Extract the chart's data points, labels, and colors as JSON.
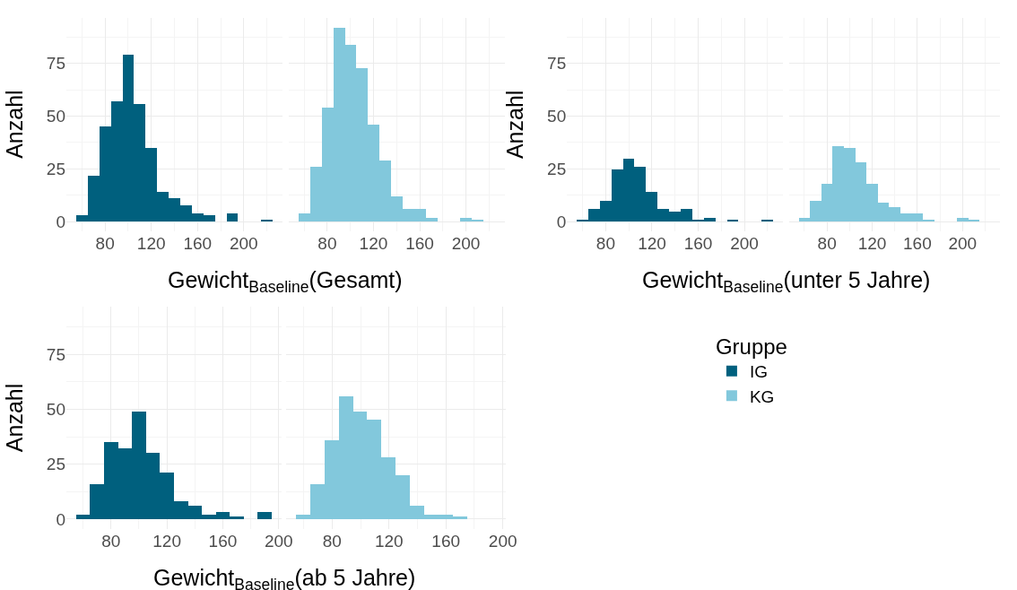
{
  "chart_data": [
    {
      "type": "histogram",
      "xlabel": "Gewicht$_{Baseline}$(Gesamt)",
      "ylabel": "Anzahl",
      "bins": [
        55,
        65,
        75,
        85,
        95,
        105,
        115,
        125,
        135,
        145,
        155,
        165,
        175,
        185,
        195,
        205,
        215,
        225
      ],
      "xlim": [
        46.5,
        233.5
      ],
      "ylim": [
        -4.6,
        96.6
      ],
      "xticks": [
        80,
        120,
        160,
        200
      ],
      "yticks": [
        0,
        25,
        50,
        75
      ],
      "grid": true,
      "color": "#00607e",
      "values": [
        3,
        22,
        45,
        57,
        79,
        56,
        35,
        14,
        11,
        8,
        4,
        3,
        0,
        4,
        0,
        0,
        1
      ]
    },
    {
      "type": "histogram",
      "bins": [
        55,
        65,
        75,
        85,
        95,
        105,
        115,
        125,
        135,
        145,
        155,
        165,
        175,
        185,
        195,
        205,
        215,
        225
      ],
      "xlim": [
        46.5,
        233.5
      ],
      "ylim": [
        -4.6,
        96.6
      ],
      "xticks": [
        80,
        120,
        160,
        200
      ],
      "yticks": [
        0,
        25,
        50,
        75
      ],
      "grid": true,
      "tick_labels": "x",
      "color": "#82c8dc",
      "values": [
        4,
        26,
        54,
        92,
        84,
        73,
        46,
        29,
        12,
        6,
        6,
        2,
        0,
        0,
        2,
        1,
        0
      ]
    },
    {
      "type": "histogram",
      "xlabel": "Gewicht$_{Baseline}$(unter 5 Jahre)",
      "ylabel": "Anzahl",
      "bins": [
        55,
        65,
        75,
        85,
        95,
        105,
        115,
        125,
        135,
        145,
        155,
        165,
        175,
        185,
        195,
        205,
        215,
        225
      ],
      "xlim": [
        46.5,
        233.5
      ],
      "ylim": [
        -4.6,
        96.6
      ],
      "xticks": [
        80,
        120,
        160,
        200
      ],
      "yticks": [
        0,
        25,
        50,
        75
      ],
      "grid": true,
      "color": "#00607e",
      "values": [
        1,
        6,
        10,
        25,
        30,
        26,
        14,
        6,
        5,
        6,
        1,
        2,
        0,
        1,
        0,
        0,
        1
      ]
    },
    {
      "type": "histogram",
      "bins": [
        55,
        65,
        75,
        85,
        95,
        105,
        115,
        125,
        135,
        145,
        155,
        165,
        175,
        185,
        195,
        205,
        215,
        225
      ],
      "xlim": [
        46.5,
        233.5
      ],
      "ylim": [
        -4.6,
        96.6
      ],
      "xticks": [
        80,
        120,
        160,
        200
      ],
      "yticks": [
        0,
        25,
        50,
        75
      ],
      "grid": true,
      "tick_labels": "x",
      "color": "#82c8dc",
      "values": [
        2,
        10,
        18,
        36,
        35,
        28,
        18,
        9,
        7,
        4,
        4,
        1,
        0,
        0,
        2,
        1,
        0
      ]
    },
    {
      "type": "histogram",
      "xlabel": "Gewicht$_{Baseline}$(ab 5 Jahre)",
      "ylabel": "Anzahl",
      "bins": [
        55,
        65,
        75,
        85,
        95,
        105,
        115,
        125,
        135,
        145,
        155,
        165,
        175,
        185,
        195
      ],
      "xlim": [
        48,
        202
      ],
      "ylim": [
        -4.6,
        96.6
      ],
      "xticks": [
        80,
        120,
        160,
        200
      ],
      "yticks": [
        0,
        25,
        50,
        75
      ],
      "grid": true,
      "legend": "right",
      "legend_title": "Gruppe",
      "series": [
        {
          "name": "IG",
          "color": "#00607e",
          "values": [
            2,
            16,
            35,
            32,
            49,
            30,
            21,
            8,
            6,
            2,
            3,
            1,
            0,
            3
          ]
        }
      ]
    },
    {
      "type": "histogram",
      "bins": [
        55,
        65,
        75,
        85,
        95,
        105,
        115,
        125,
        135,
        145,
        155,
        165,
        175,
        185,
        195
      ],
      "xlim": [
        48,
        202
      ],
      "ylim": [
        -4.6,
        96.6
      ],
      "xticks": [
        80,
        120,
        160,
        200
      ],
      "yticks": [
        0,
        25,
        50,
        75
      ],
      "grid": true,
      "tick_labels": "x",
      "legend": "right",
      "series": [
        {
          "name": "KG",
          "color": "#82c8dc",
          "values": [
            2,
            16,
            36,
            56,
            49,
            45,
            28,
            20,
            6,
            2,
            2,
            1,
            0,
            0
          ]
        }
      ]
    }
  ]
}
